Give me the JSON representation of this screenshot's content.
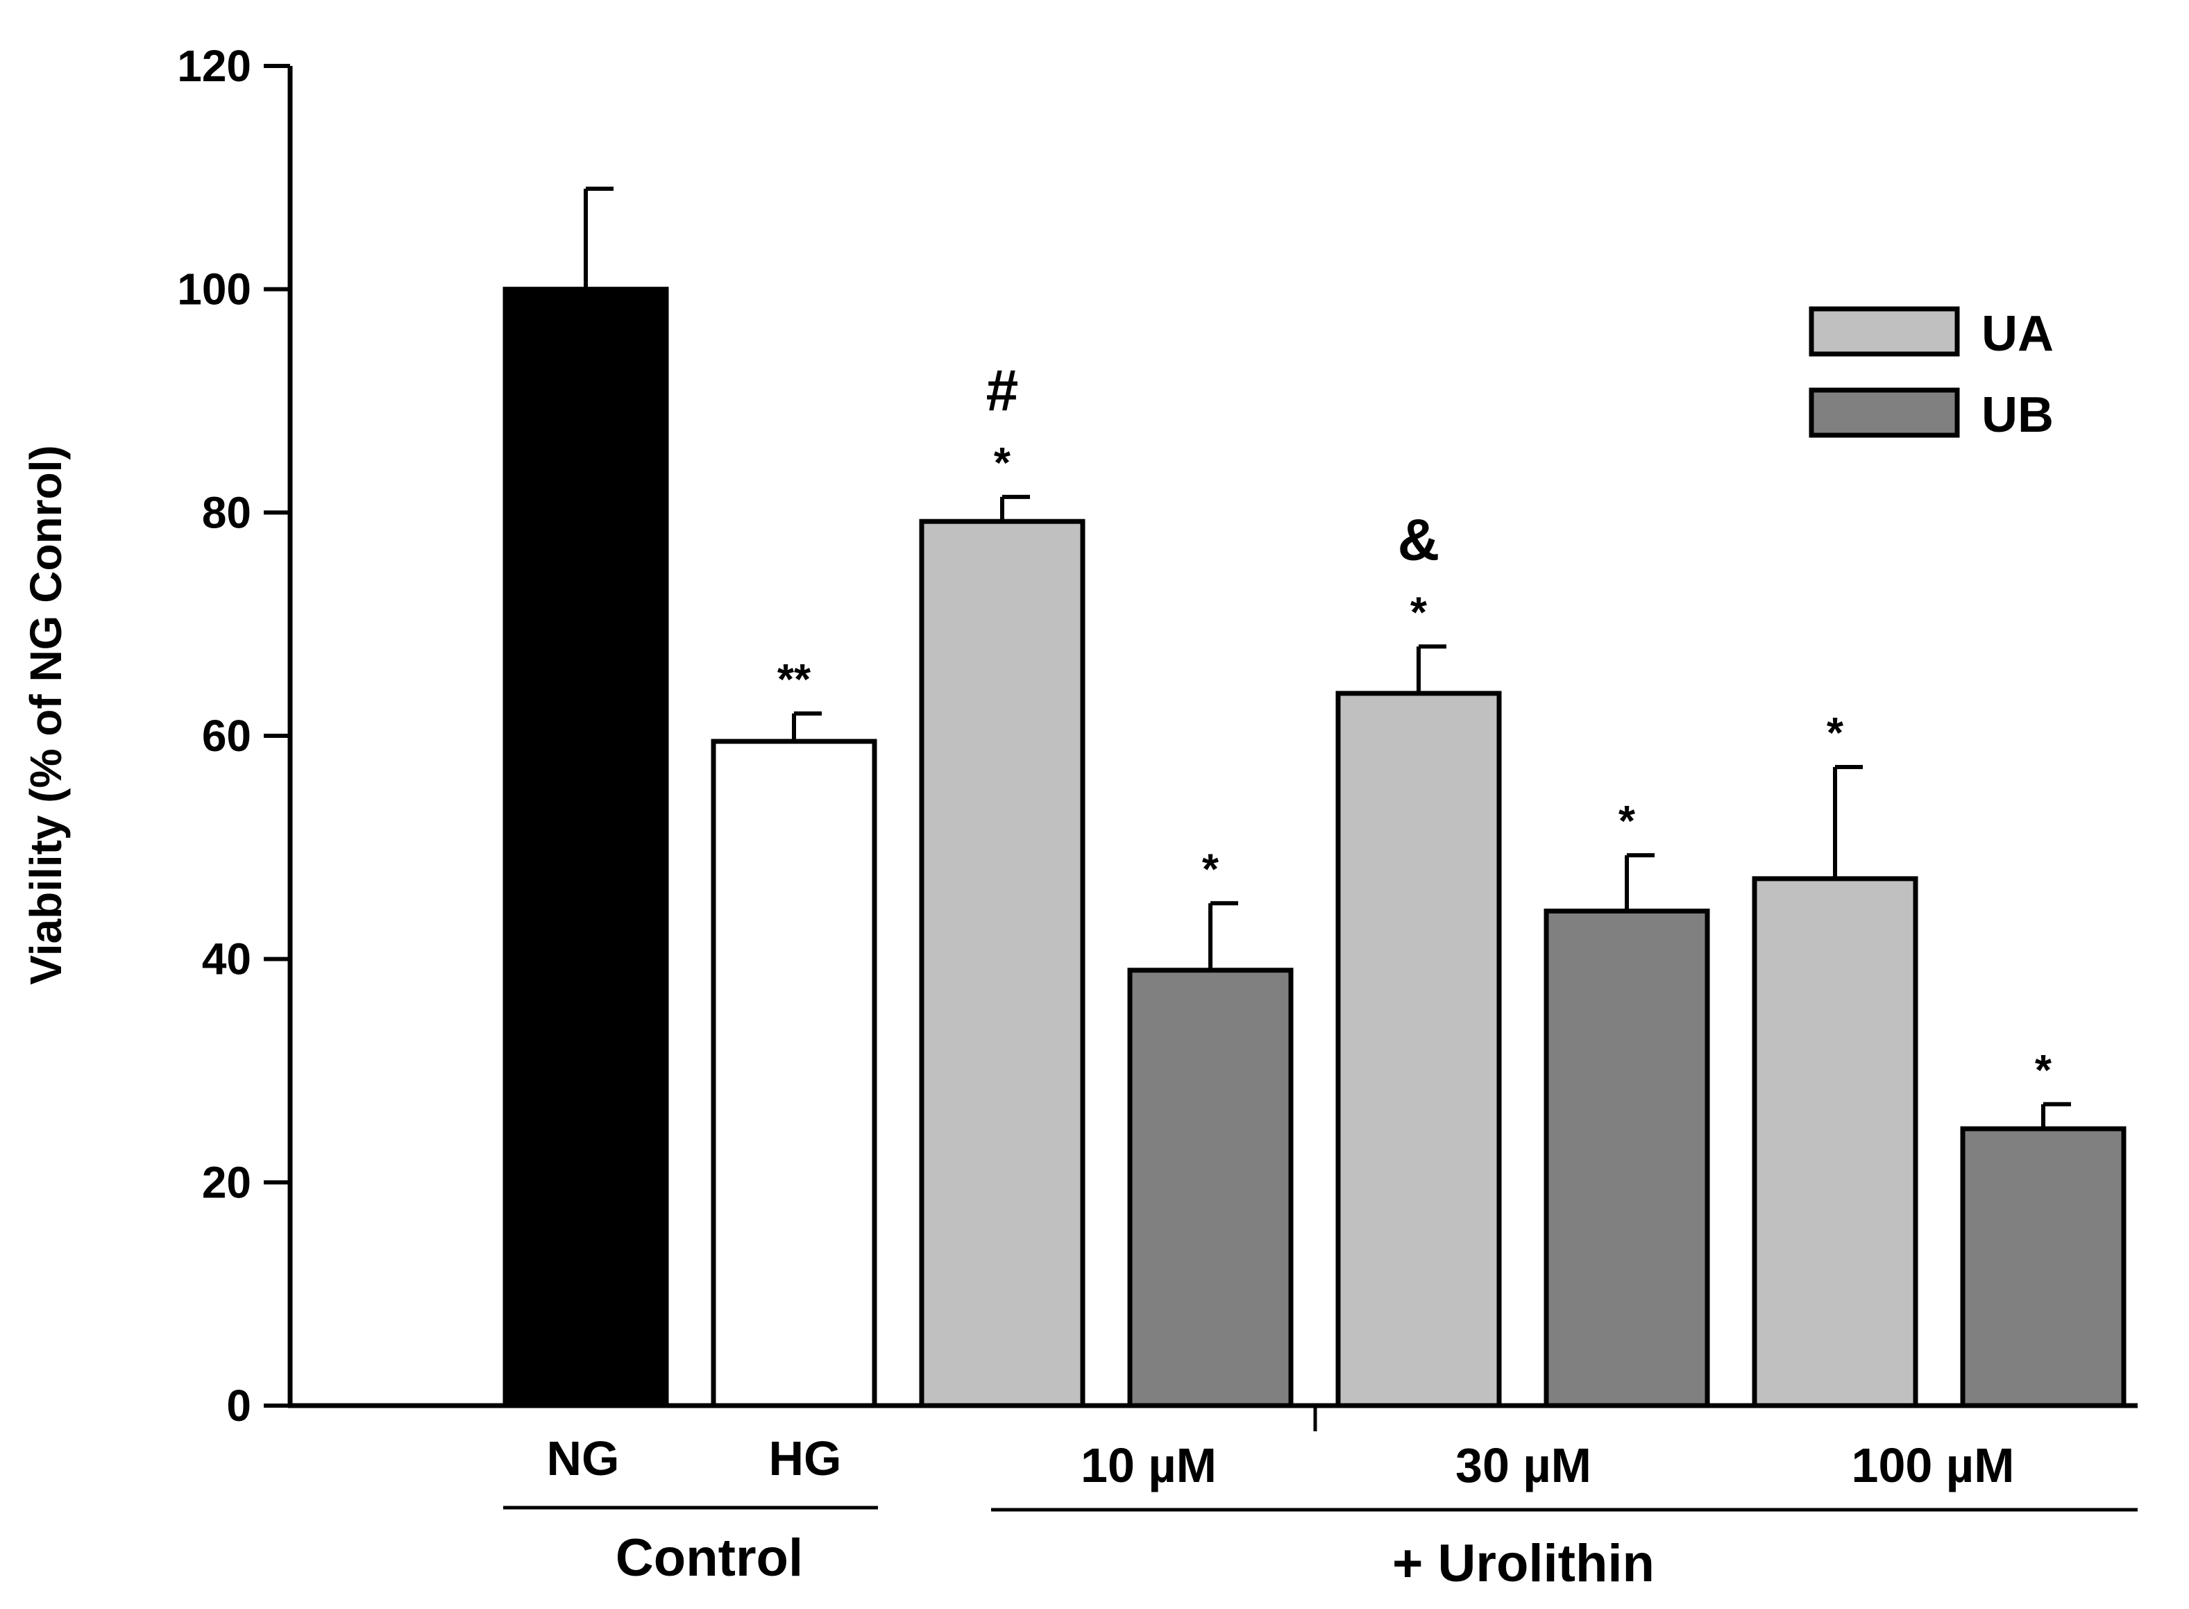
{
  "chart_data": {
    "type": "bar",
    "title": "",
    "xlabel": "",
    "ylabel": "Viability (% of NG Conrol)",
    "ylim": [
      0,
      120
    ],
    "yticks": [
      0,
      20,
      40,
      60,
      80,
      100,
      120
    ],
    "grid": false,
    "legend_position": "top-right",
    "legend": [
      {
        "label": "UA",
        "color": "#c0c0c0"
      },
      {
        "label": "UB",
        "color": "#808080"
      }
    ],
    "bars": [
      {
        "label": "NG",
        "series": "Control",
        "value": 100,
        "error": 9,
        "color": "#000000",
        "annotations": []
      },
      {
        "label": "HG",
        "series": "Control",
        "value": 59.5,
        "error": 2.5,
        "color": "#ffffff",
        "annotations": [
          "**"
        ]
      },
      {
        "label": "10 µM UA",
        "series": "UA",
        "value": 79.2,
        "error": 2.2,
        "color": "#c0c0c0",
        "annotations": [
          "*",
          "#"
        ]
      },
      {
        "label": "10 µM UB",
        "series": "UB",
        "value": 39,
        "error": 6,
        "color": "#808080",
        "annotations": [
          "*"
        ]
      },
      {
        "label": "30 µM UA",
        "series": "UA",
        "value": 63.8,
        "error": 4.2,
        "color": "#c0c0c0",
        "annotations": [
          "*",
          "&"
        ]
      },
      {
        "label": "30 µM UB",
        "series": "UB",
        "value": 44.3,
        "error": 5,
        "color": "#808080",
        "annotations": [
          "*"
        ]
      },
      {
        "label": "100 µM UA",
        "series": "UA",
        "value": 47.2,
        "error": 10,
        "color": "#c0c0c0",
        "annotations": [
          "*"
        ]
      },
      {
        "label": "100 µM UB",
        "series": "UB",
        "value": 24.8,
        "error": 2.2,
        "color": "#808080",
        "annotations": [
          "*"
        ]
      }
    ],
    "category_labels": [
      "NG",
      "HG",
      "10 µM",
      "30 µM",
      "100 µM"
    ],
    "group_labels": [
      "Control",
      "+ Urolithin"
    ]
  }
}
